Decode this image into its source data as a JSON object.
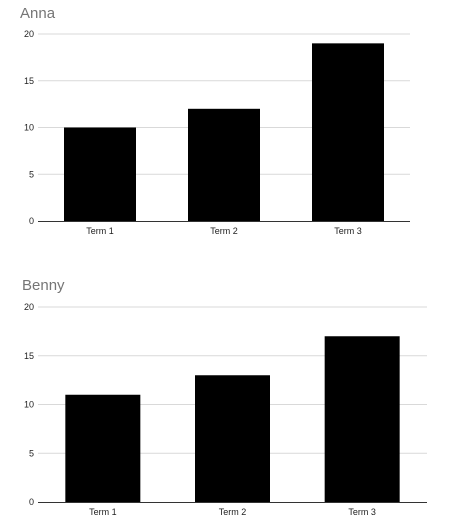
{
  "colors": {
    "bar": "#000000",
    "title": "#757575",
    "grid": "#d9d9d9",
    "axis": "#333333",
    "text": "#222222"
  },
  "chart_data": [
    {
      "type": "bar",
      "title": "Anna",
      "categories": [
        "Term 1",
        "Term 2",
        "Term 3"
      ],
      "values": [
        10,
        12,
        19
      ],
      "ylim": [
        0,
        20
      ],
      "yticks": [
        "0",
        "5",
        "10",
        "15",
        "20"
      ],
      "xlabel": "",
      "ylabel": "",
      "grid": true
    },
    {
      "type": "bar",
      "title": "Benny",
      "categories": [
        "Term 1",
        "Term 2",
        "Term 3"
      ],
      "values": [
        11,
        13,
        17
      ],
      "ylim": [
        0,
        20
      ],
      "yticks": [
        "0",
        "5",
        "10",
        "15",
        "20"
      ],
      "xlabel": "",
      "ylabel": "",
      "grid": true
    }
  ]
}
